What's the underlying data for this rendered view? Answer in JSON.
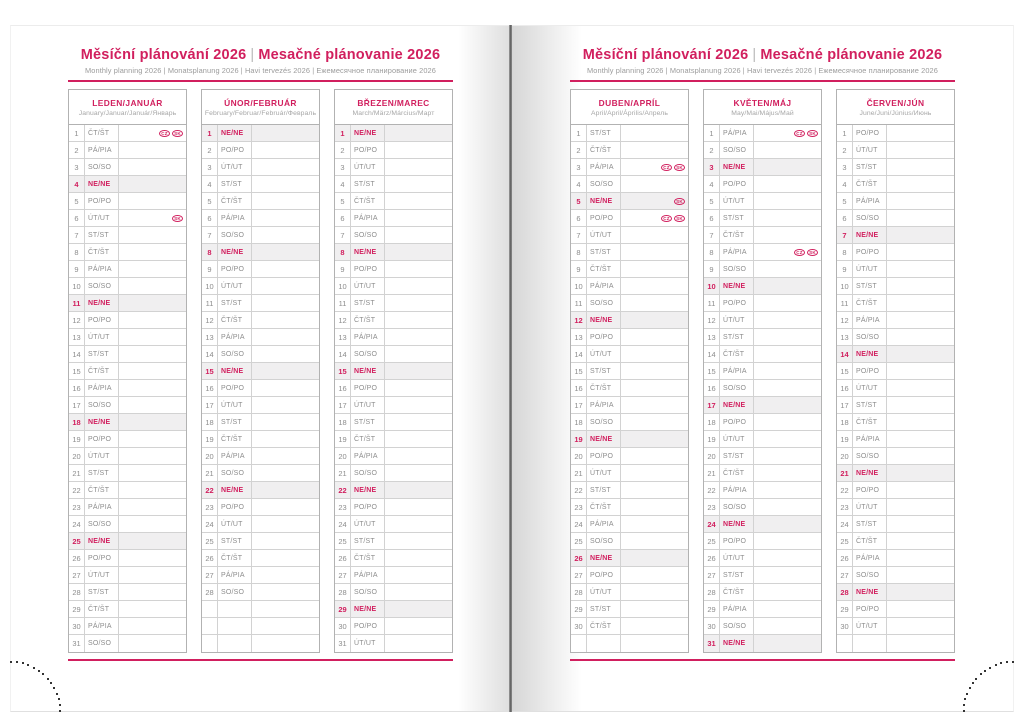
{
  "header": {
    "title_cz": "Měsíční plánování 2026",
    "separator": "|",
    "title_sk": "Mesačné plánovanie 2026",
    "subtitle": "Monthly planning 2026 | Monatsplanung 2026 | Havi tervezés 2026 | Ежемесячное планирование 2026"
  },
  "year": "2026",
  "sunday_label": "NE/NE",
  "badge_labels": {
    "cz": "CZ",
    "sk": "SK"
  },
  "colors": {
    "accent": "#d11f5e",
    "row_shade": "#f0eff0",
    "day_text": "#8d8d8d",
    "border_outer": "#b2b2b2",
    "border_inner": "#d2d2d2",
    "dot": "#333333"
  },
  "months": [
    {
      "slug": "january",
      "name": "LEDEN/JANUÁR",
      "subtitle": "January/Januar/Január/Январь",
      "days": [
        "ČT/ŠT",
        "PÁ/PIA",
        "SO/SO",
        "NE/NE",
        "PO/PO",
        "ÚT/UT",
        "ST/ST",
        "ČT/ŠT",
        "PÁ/PIA",
        "SO/SO",
        "NE/NE",
        "PO/PO",
        "ÚT/UT",
        "ST/ST",
        "ČT/ŠT",
        "PÁ/PIA",
        "SO/SO",
        "NE/NE",
        "PO/PO",
        "ÚT/UT",
        "ST/ST",
        "ČT/ŠT",
        "PÁ/PIA",
        "SO/SO",
        "NE/NE",
        "PO/PO",
        "ÚT/UT",
        "ST/ST",
        "ČT/ŠT",
        "PÁ/PIA",
        "SO/SO"
      ],
      "holiday_badges": {
        "1": [
          "cz",
          "sk"
        ],
        "6": [
          "sk"
        ]
      }
    },
    {
      "slug": "february",
      "name": "ÚNOR/FEBRUÁR",
      "subtitle": "February/Februar/Február/Февраль",
      "days": [
        "NE/NE",
        "PO/PO",
        "ÚT/UT",
        "ST/ST",
        "ČT/ŠT",
        "PÁ/PIA",
        "SO/SO",
        "NE/NE",
        "PO/PO",
        "ÚT/UT",
        "ST/ST",
        "ČT/ŠT",
        "PÁ/PIA",
        "SO/SO",
        "NE/NE",
        "PO/PO",
        "ÚT/UT",
        "ST/ST",
        "ČT/ŠT",
        "PÁ/PIA",
        "SO/SO",
        "NE/NE",
        "PO/PO",
        "ÚT/UT",
        "ST/ST",
        "ČT/ŠT",
        "PÁ/PIA",
        "SO/SO"
      ],
      "holiday_badges": {}
    },
    {
      "slug": "march",
      "name": "BŘEZEN/MAREC",
      "subtitle": "March/März/Március/Март",
      "days": [
        "NE/NE",
        "PO/PO",
        "ÚT/UT",
        "ST/ST",
        "ČT/ŠT",
        "PÁ/PIA",
        "SO/SO",
        "NE/NE",
        "PO/PO",
        "ÚT/UT",
        "ST/ST",
        "ČT/ŠT",
        "PÁ/PIA",
        "SO/SO",
        "NE/NE",
        "PO/PO",
        "ÚT/UT",
        "ST/ST",
        "ČT/ŠT",
        "PÁ/PIA",
        "SO/SO",
        "NE/NE",
        "PO/PO",
        "ÚT/UT",
        "ST/ST",
        "ČT/ŠT",
        "PÁ/PIA",
        "SO/SO",
        "NE/NE",
        "PO/PO",
        "ÚT/UT"
      ],
      "holiday_badges": {}
    },
    {
      "slug": "april",
      "name": "DUBEN/APRÍL",
      "subtitle": "April/April/Április/Апрель",
      "days": [
        "ST/ST",
        "ČT/ŠT",
        "PÁ/PIA",
        "SO/SO",
        "NE/NE",
        "PO/PO",
        "ÚT/UT",
        "ST/ST",
        "ČT/ŠT",
        "PÁ/PIA",
        "SO/SO",
        "NE/NE",
        "PO/PO",
        "ÚT/UT",
        "ST/ST",
        "ČT/ŠT",
        "PÁ/PIA",
        "SO/SO",
        "NE/NE",
        "PO/PO",
        "ÚT/UT",
        "ST/ST",
        "ČT/ŠT",
        "PÁ/PIA",
        "SO/SO",
        "NE/NE",
        "PO/PO",
        "ÚT/UT",
        "ST/ST",
        "ČT/ŠT"
      ],
      "holiday_badges": {
        "3": [
          "cz",
          "sk"
        ],
        "5": [
          "sk"
        ],
        "6": [
          "cz",
          "sk"
        ]
      }
    },
    {
      "slug": "may",
      "name": "KVĚTEN/MÁJ",
      "subtitle": "May/Mai/Május/Май",
      "days": [
        "PÁ/PIA",
        "SO/SO",
        "NE/NE",
        "PO/PO",
        "ÚT/UT",
        "ST/ST",
        "ČT/ŠT",
        "PÁ/PIA",
        "SO/SO",
        "NE/NE",
        "PO/PO",
        "ÚT/UT",
        "ST/ST",
        "ČT/ŠT",
        "PÁ/PIA",
        "SO/SO",
        "NE/NE",
        "PO/PO",
        "ÚT/UT",
        "ST/ST",
        "ČT/ŠT",
        "PÁ/PIA",
        "SO/SO",
        "NE/NE",
        "PO/PO",
        "ÚT/UT",
        "ST/ST",
        "ČT/ŠT",
        "PÁ/PIA",
        "SO/SO",
        "NE/NE"
      ],
      "holiday_badges": {
        "1": [
          "cz",
          "sk"
        ],
        "8": [
          "cz",
          "sk"
        ]
      }
    },
    {
      "slug": "june",
      "name": "ČERVEN/JÚN",
      "subtitle": "June/Juni/Június/Июнь",
      "days": [
        "PO/PO",
        "ÚT/UT",
        "ST/ST",
        "ČT/ŠT",
        "PÁ/PIA",
        "SO/SO",
        "NE/NE",
        "PO/PO",
        "ÚT/UT",
        "ST/ST",
        "ČT/ŠT",
        "PÁ/PIA",
        "SO/SO",
        "NE/NE",
        "PO/PO",
        "ÚT/UT",
        "ST/ST",
        "ČT/ŠT",
        "PÁ/PIA",
        "SO/SO",
        "NE/NE",
        "PO/PO",
        "ÚT/UT",
        "ST/ST",
        "ČT/ŠT",
        "PÁ/PIA",
        "SO/SO",
        "NE/NE",
        "PO/PO",
        "ÚT/UT"
      ],
      "holiday_badges": {}
    }
  ]
}
